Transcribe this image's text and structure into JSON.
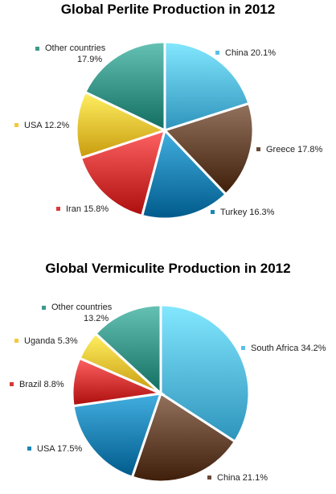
{
  "colors": {
    "light_blue": "#5bc0e8",
    "brown": "#6b4a36",
    "teal_blue": "#1a87b8",
    "red": "#d93a3a",
    "yellow": "#f5c83a",
    "teal_green": "#3e9a8c"
  },
  "chart_data": [
    {
      "type": "pie",
      "title": "Global Perlite Production in 2012",
      "slices": [
        {
          "label": "China 20.1%",
          "value": 20.1,
          "color": "#5bc0e8"
        },
        {
          "label": "Greece 17.8%",
          "value": 17.8,
          "color": "#6b4a36"
        },
        {
          "label": "Turkey 16.3%",
          "value": 16.3,
          "color": "#1a87b8"
        },
        {
          "label": "Iran 15.8%",
          "value": 15.8,
          "color": "#d93a3a"
        },
        {
          "label": "USA 12.2%",
          "value": 12.2,
          "color": "#f5c83a"
        },
        {
          "label": "Other countries 17.9%",
          "value": 17.9,
          "color": "#3e9a8c"
        }
      ]
    },
    {
      "type": "pie",
      "title": "Global Vermiculite Production in 2012",
      "slices": [
        {
          "label": "South Africa 34.2%",
          "value": 34.2,
          "color": "#5bc0e8"
        },
        {
          "label": "China 21.1%",
          "value": 21.1,
          "color": "#6b4a36"
        },
        {
          "label": "USA 17.5%",
          "value": 17.5,
          "color": "#1a87b8"
        },
        {
          "label": "Brazil 8.8%",
          "value": 8.8,
          "color": "#d93a3a"
        },
        {
          "label": "Uganda 5.3%",
          "value": 5.3,
          "color": "#f5c83a"
        },
        {
          "label": "Other countries 13.2%",
          "value": 13.2,
          "color": "#3e9a8c"
        }
      ]
    }
  ]
}
